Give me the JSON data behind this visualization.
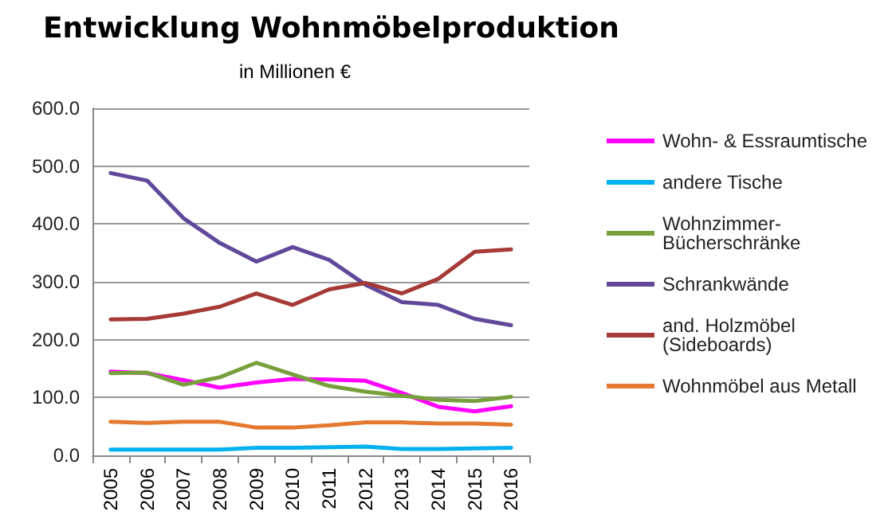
{
  "chart_data": {
    "type": "line",
    "title": "Entwicklung Wohnmöbelproduktion",
    "subtitle": "in Millionen €",
    "categories": [
      "2005",
      "2006",
      "2007",
      "2008",
      "2009",
      "2010",
      "2011",
      "2012",
      "2013",
      "2014",
      "2015",
      "2016"
    ],
    "series": [
      {
        "name": "Wohn- & Essraumtische",
        "color": "#ff00ff",
        "values": [
          145,
          142,
          130,
          117,
          126,
          132,
          131,
          129,
          108,
          84,
          76,
          85
        ]
      },
      {
        "name": "andere Tische",
        "color": "#00b0f0",
        "values": [
          10,
          10,
          10,
          10,
          13,
          13,
          14,
          15,
          11,
          11,
          12,
          13
        ]
      },
      {
        "name": "Wohnzimmer-Bücherschränke",
        "color": "#77a03c",
        "values": [
          142,
          143,
          122,
          135,
          160,
          140,
          120,
          110,
          103,
          96,
          94,
          101
        ]
      },
      {
        "name": "Schrankwände",
        "color": "#60499a",
        "values": [
          488,
          475,
          410,
          367,
          335,
          360,
          338,
          295,
          265,
          260,
          236,
          225
        ]
      },
      {
        "name": "and. Holzmöbel (Sideboards)",
        "color": "#a53a36",
        "values": [
          235,
          236,
          245,
          257,
          280,
          260,
          287,
          298,
          280,
          305,
          352,
          356
        ]
      },
      {
        "name": "Wohnmöbel aus Metall",
        "color": "#e4792f",
        "values": [
          58,
          56,
          58,
          58,
          48,
          48,
          52,
          57,
          57,
          55,
          55,
          53
        ]
      }
    ],
    "ylim": [
      0,
      600
    ],
    "yticks": [
      {
        "value": 0,
        "label": "0.0"
      },
      {
        "value": 100,
        "label": "100.0"
      },
      {
        "value": 200,
        "label": "200.0"
      },
      {
        "value": 300,
        "label": "300.0"
      },
      {
        "value": 400,
        "label": "400.0"
      },
      {
        "value": 500,
        "label": "500.0"
      },
      {
        "value": 600,
        "label": "600.0"
      }
    ],
    "grid": "y",
    "legend": "right",
    "marker": "none",
    "line_style": "solid"
  }
}
